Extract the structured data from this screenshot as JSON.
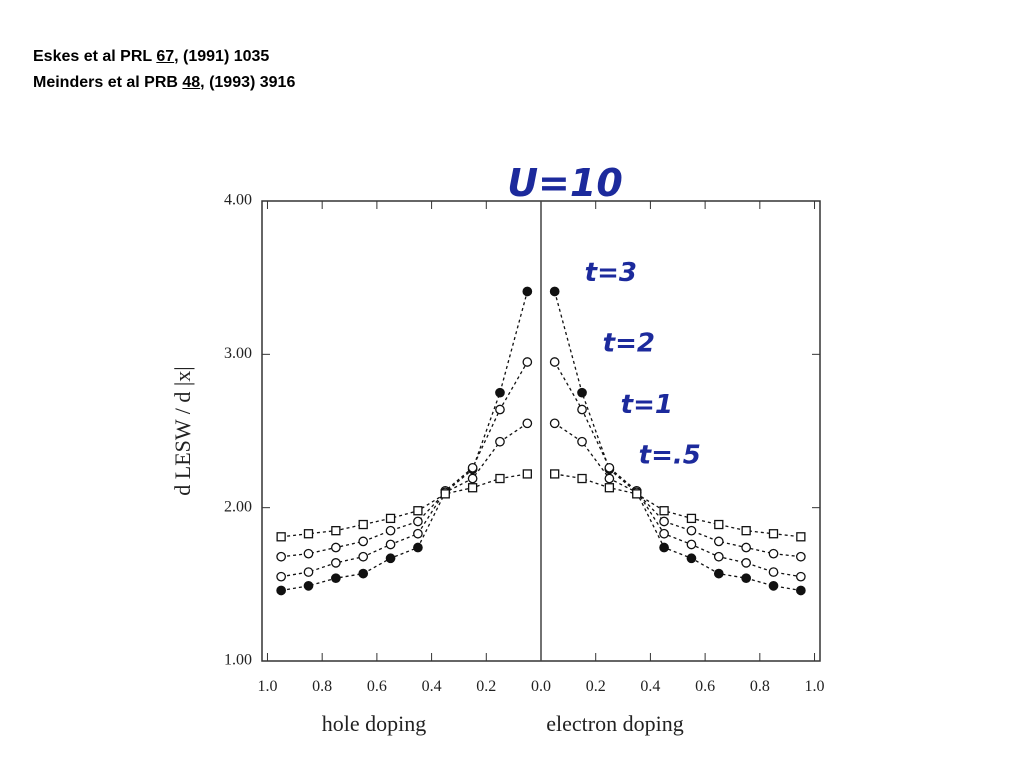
{
  "references": [
    [
      "Eskes et al  PRL ",
      "67",
      ", (1991) 1035"
    ],
    [
      "Meinders et al PRB ",
      "48",
      ", (1993) 3916"
    ]
  ],
  "chart_data": {
    "type": "line",
    "title": "U=10",
    "y_label": "d LESW / d |x|",
    "x_labels": [
      "hole doping",
      "electron doping"
    ],
    "x": [
      -0.95,
      -0.85,
      -0.75,
      -0.65,
      -0.55,
      -0.45,
      -0.35,
      -0.25,
      -0.15,
      -0.05,
      0.05,
      0.15,
      0.25,
      0.35,
      0.45,
      0.55,
      0.65,
      0.75,
      0.85,
      0.95
    ],
    "series": [
      {
        "name": "t=3",
        "color": "#111111",
        "marker": "filled-circle",
        "values": [
          1.46,
          1.49,
          1.54,
          1.57,
          1.67,
          1.74,
          2.1,
          2.25,
          2.75,
          3.41,
          3.41,
          2.75,
          2.25,
          2.1,
          1.74,
          1.67,
          1.57,
          1.54,
          1.49,
          1.46
        ]
      },
      {
        "name": "t=2",
        "color": "#111111",
        "marker": "circle",
        "values": [
          1.55,
          1.58,
          1.64,
          1.68,
          1.76,
          1.83,
          2.11,
          2.26,
          2.64,
          2.95,
          2.95,
          2.64,
          2.26,
          2.11,
          1.83,
          1.76,
          1.68,
          1.64,
          1.58,
          1.55
        ]
      },
      {
        "name": "t=1",
        "color": "#111111",
        "marker": "circle",
        "values": [
          1.68,
          1.7,
          1.74,
          1.78,
          1.85,
          1.91,
          2.1,
          2.19,
          2.43,
          2.55,
          2.55,
          2.43,
          2.19,
          2.1,
          1.91,
          1.85,
          1.78,
          1.74,
          1.7,
          1.68
        ]
      },
      {
        "name": "t=.5",
        "color": "#111111",
        "marker": "square",
        "values": [
          1.81,
          1.83,
          1.85,
          1.89,
          1.93,
          1.98,
          2.09,
          2.13,
          2.19,
          2.22,
          2.22,
          2.19,
          2.13,
          2.09,
          1.98,
          1.93,
          1.89,
          1.85,
          1.83,
          1.81
        ]
      }
    ],
    "xlim": [
      -1.02,
      1.02
    ],
    "xticks": [
      {
        "value": -1.0,
        "label": "1.0"
      },
      {
        "value": -0.8,
        "label": "0.8"
      },
      {
        "value": -0.6,
        "label": "0.6"
      },
      {
        "value": -0.4,
        "label": "0.4"
      },
      {
        "value": -0.2,
        "label": "0.2"
      },
      {
        "value": 0,
        "label": "0.0"
      },
      {
        "value": 0.2,
        "label": "0.2"
      },
      {
        "value": 0.4,
        "label": "0.4"
      },
      {
        "value": 0.6,
        "label": "0.6"
      },
      {
        "value": 0.8,
        "label": "0.8"
      },
      {
        "value": 1.0,
        "label": "1.0"
      }
    ],
    "ylim": [
      1,
      4
    ],
    "yticks": [
      {
        "value": 1,
        "label": "1.00"
      },
      {
        "value": 2,
        "label": "2.00"
      },
      {
        "value": 3,
        "label": "3.00"
      },
      {
        "value": 4,
        "label": "4.00"
      }
    ],
    "grid": false
  }
}
